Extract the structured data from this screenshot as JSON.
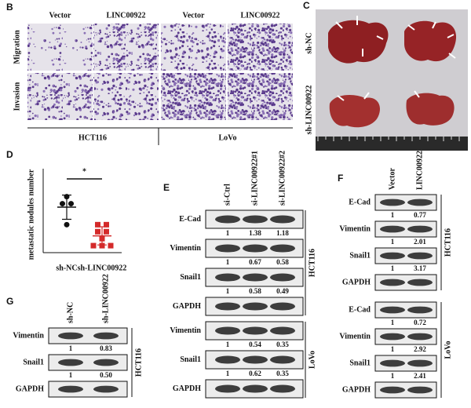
{
  "panels": {
    "B": {
      "label": "B",
      "columns": [
        "Vector",
        "LINC00922",
        "Vector",
        "LINC00922"
      ],
      "rows": [
        "Migration",
        "Invasion"
      ],
      "cell_lines": [
        "HCT116",
        "LoVo"
      ]
    },
    "C": {
      "label": "C",
      "groups": [
        "sh-NC",
        "sh-LINC00922"
      ]
    },
    "E": {
      "label": "E",
      "lanes": [
        "si-Ctrl",
        "si-LINC00922#1",
        "si-LINC00922#2"
      ],
      "groups": [
        {
          "cell_line": "HCT116",
          "blots": [
            {
              "protein": "E-Cad",
              "ratios": [
                "1",
                "1.38",
                "1.18"
              ]
            },
            {
              "protein": "Vimentin",
              "ratios": [
                "1",
                "0.67",
                "0.58"
              ]
            },
            {
              "protein": "Snail1",
              "ratios": [
                "1",
                "0.58",
                "0.49"
              ]
            },
            {
              "protein": "GAPDH"
            }
          ]
        },
        {
          "cell_line": "LoVo",
          "blots": [
            {
              "protein": "Vimentin",
              "ratios": [
                "1",
                "0.54",
                "0.35"
              ]
            },
            {
              "protein": "Snail1",
              "ratios": [
                "1",
                "0.62",
                "0.35"
              ]
            },
            {
              "protein": "GAPDH"
            }
          ]
        }
      ]
    },
    "F": {
      "label": "F",
      "lanes": [
        "Vector",
        "LINC00922"
      ],
      "groups": [
        {
          "cell_line": "HCT116",
          "blots": [
            {
              "protein": "E-Cad",
              "ratios": [
                "1",
                "0.77"
              ]
            },
            {
              "protein": "Vimentin",
              "ratios": [
                "1",
                "2.01"
              ]
            },
            {
              "protein": "Snail1",
              "ratios": [
                "1",
                "3.17"
              ]
            },
            {
              "protein": "GAPDH"
            }
          ]
        },
        {
          "cell_line": "LoVo",
          "blots": [
            {
              "protein": "E-Cad",
              "ratios": [
                "1",
                "0.72"
              ]
            },
            {
              "protein": "Vimentin",
              "ratios": [
                "1",
                "2.92"
              ]
            },
            {
              "protein": "Snail1",
              "ratios": [
                "1",
                "2.41"
              ]
            },
            {
              "protein": "GAPDH"
            }
          ]
        }
      ]
    },
    "G": {
      "label": "G",
      "lanes": [
        "sh-NC",
        "sh-LINC00922"
      ],
      "groups": [
        {
          "cell_line": "HCT116",
          "blots": [
            {
              "protein": "Vimentin",
              "ratios": [
                "1",
                "0.83"
              ]
            },
            {
              "protein": "Snail1",
              "ratios": [
                "1",
                "0.50"
              ]
            },
            {
              "protein": "GAPDH"
            }
          ]
        }
      ]
    }
  },
  "chart_data": {
    "type": "scatter",
    "panel": "D",
    "y_label": "metastatic nodules number",
    "categories": [
      "sh-NC",
      "sh-LINC00922"
    ],
    "significance": "*",
    "ylim": [
      0,
      12
    ],
    "groups": [
      {
        "values": [
          8,
          7,
          7,
          4
        ],
        "mean": 6.5,
        "sd": 1.73,
        "color": "#111111"
      },
      {
        "values": [
          4,
          4,
          3,
          3,
          2,
          1,
          1,
          1
        ],
        "mean": 2.4,
        "sd": 1.3,
        "color": "#d42a2a"
      }
    ]
  }
}
